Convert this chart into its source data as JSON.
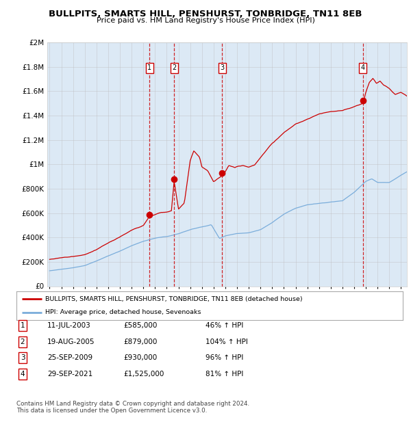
{
  "title": "BULLPITS, SMARTS HILL, PENSHURST, TONBRIDGE, TN11 8EB",
  "subtitle": "Price paid vs. HM Land Registry's House Price Index (HPI)",
  "x_start": 1995.0,
  "x_end": 2025.5,
  "y_min": 0,
  "y_max": 2000000,
  "yticks": [
    0,
    200000,
    400000,
    600000,
    800000,
    1000000,
    1200000,
    1400000,
    1600000,
    1800000,
    2000000
  ],
  "ytick_labels": [
    "£0",
    "£200K",
    "£400K",
    "£600K",
    "£800K",
    "£1M",
    "£1.2M",
    "£1.4M",
    "£1.6M",
    "£1.8M",
    "£2M"
  ],
  "xticks": [
    1995,
    1996,
    1997,
    1998,
    1999,
    2000,
    2001,
    2002,
    2003,
    2004,
    2005,
    2006,
    2007,
    2008,
    2009,
    2010,
    2011,
    2012,
    2013,
    2014,
    2015,
    2016,
    2017,
    2018,
    2019,
    2020,
    2021,
    2022,
    2023,
    2024,
    2025
  ],
  "sale_dates_decimal": [
    2003.53,
    2005.63,
    2009.73,
    2021.75
  ],
  "sale_prices": [
    585000,
    879000,
    930000,
    1525000
  ],
  "sale_labels": [
    "1",
    "2",
    "3",
    "4"
  ],
  "sale_info": [
    {
      "num": "1",
      "date": "11-JUL-2003",
      "price": "£585,000",
      "hpi": "46% ↑ HPI"
    },
    {
      "num": "2",
      "date": "19-AUG-2005",
      "price": "£879,000",
      "hpi": "104% ↑ HPI"
    },
    {
      "num": "3",
      "date": "25-SEP-2009",
      "price": "£930,000",
      "hpi": "96% ↑ HPI"
    },
    {
      "num": "4",
      "date": "29-SEP-2021",
      "price": "£1,525,000",
      "hpi": "81% ↑ HPI"
    }
  ],
  "legend_line1": "BULLPITS, SMARTS HILL, PENSHURST, TONBRIDGE, TN11 8EB (detached house)",
  "legend_line2": "HPI: Average price, detached house, Sevenoaks",
  "footnote1": "Contains HM Land Registry data © Crown copyright and database right 2024.",
  "footnote2": "This data is licensed under the Open Government Licence v3.0.",
  "red_color": "#cc0000",
  "blue_color": "#7aaddb",
  "bg_color": "#dce9f5",
  "grid_color": "#bbbbbb",
  "white": "#ffffff"
}
